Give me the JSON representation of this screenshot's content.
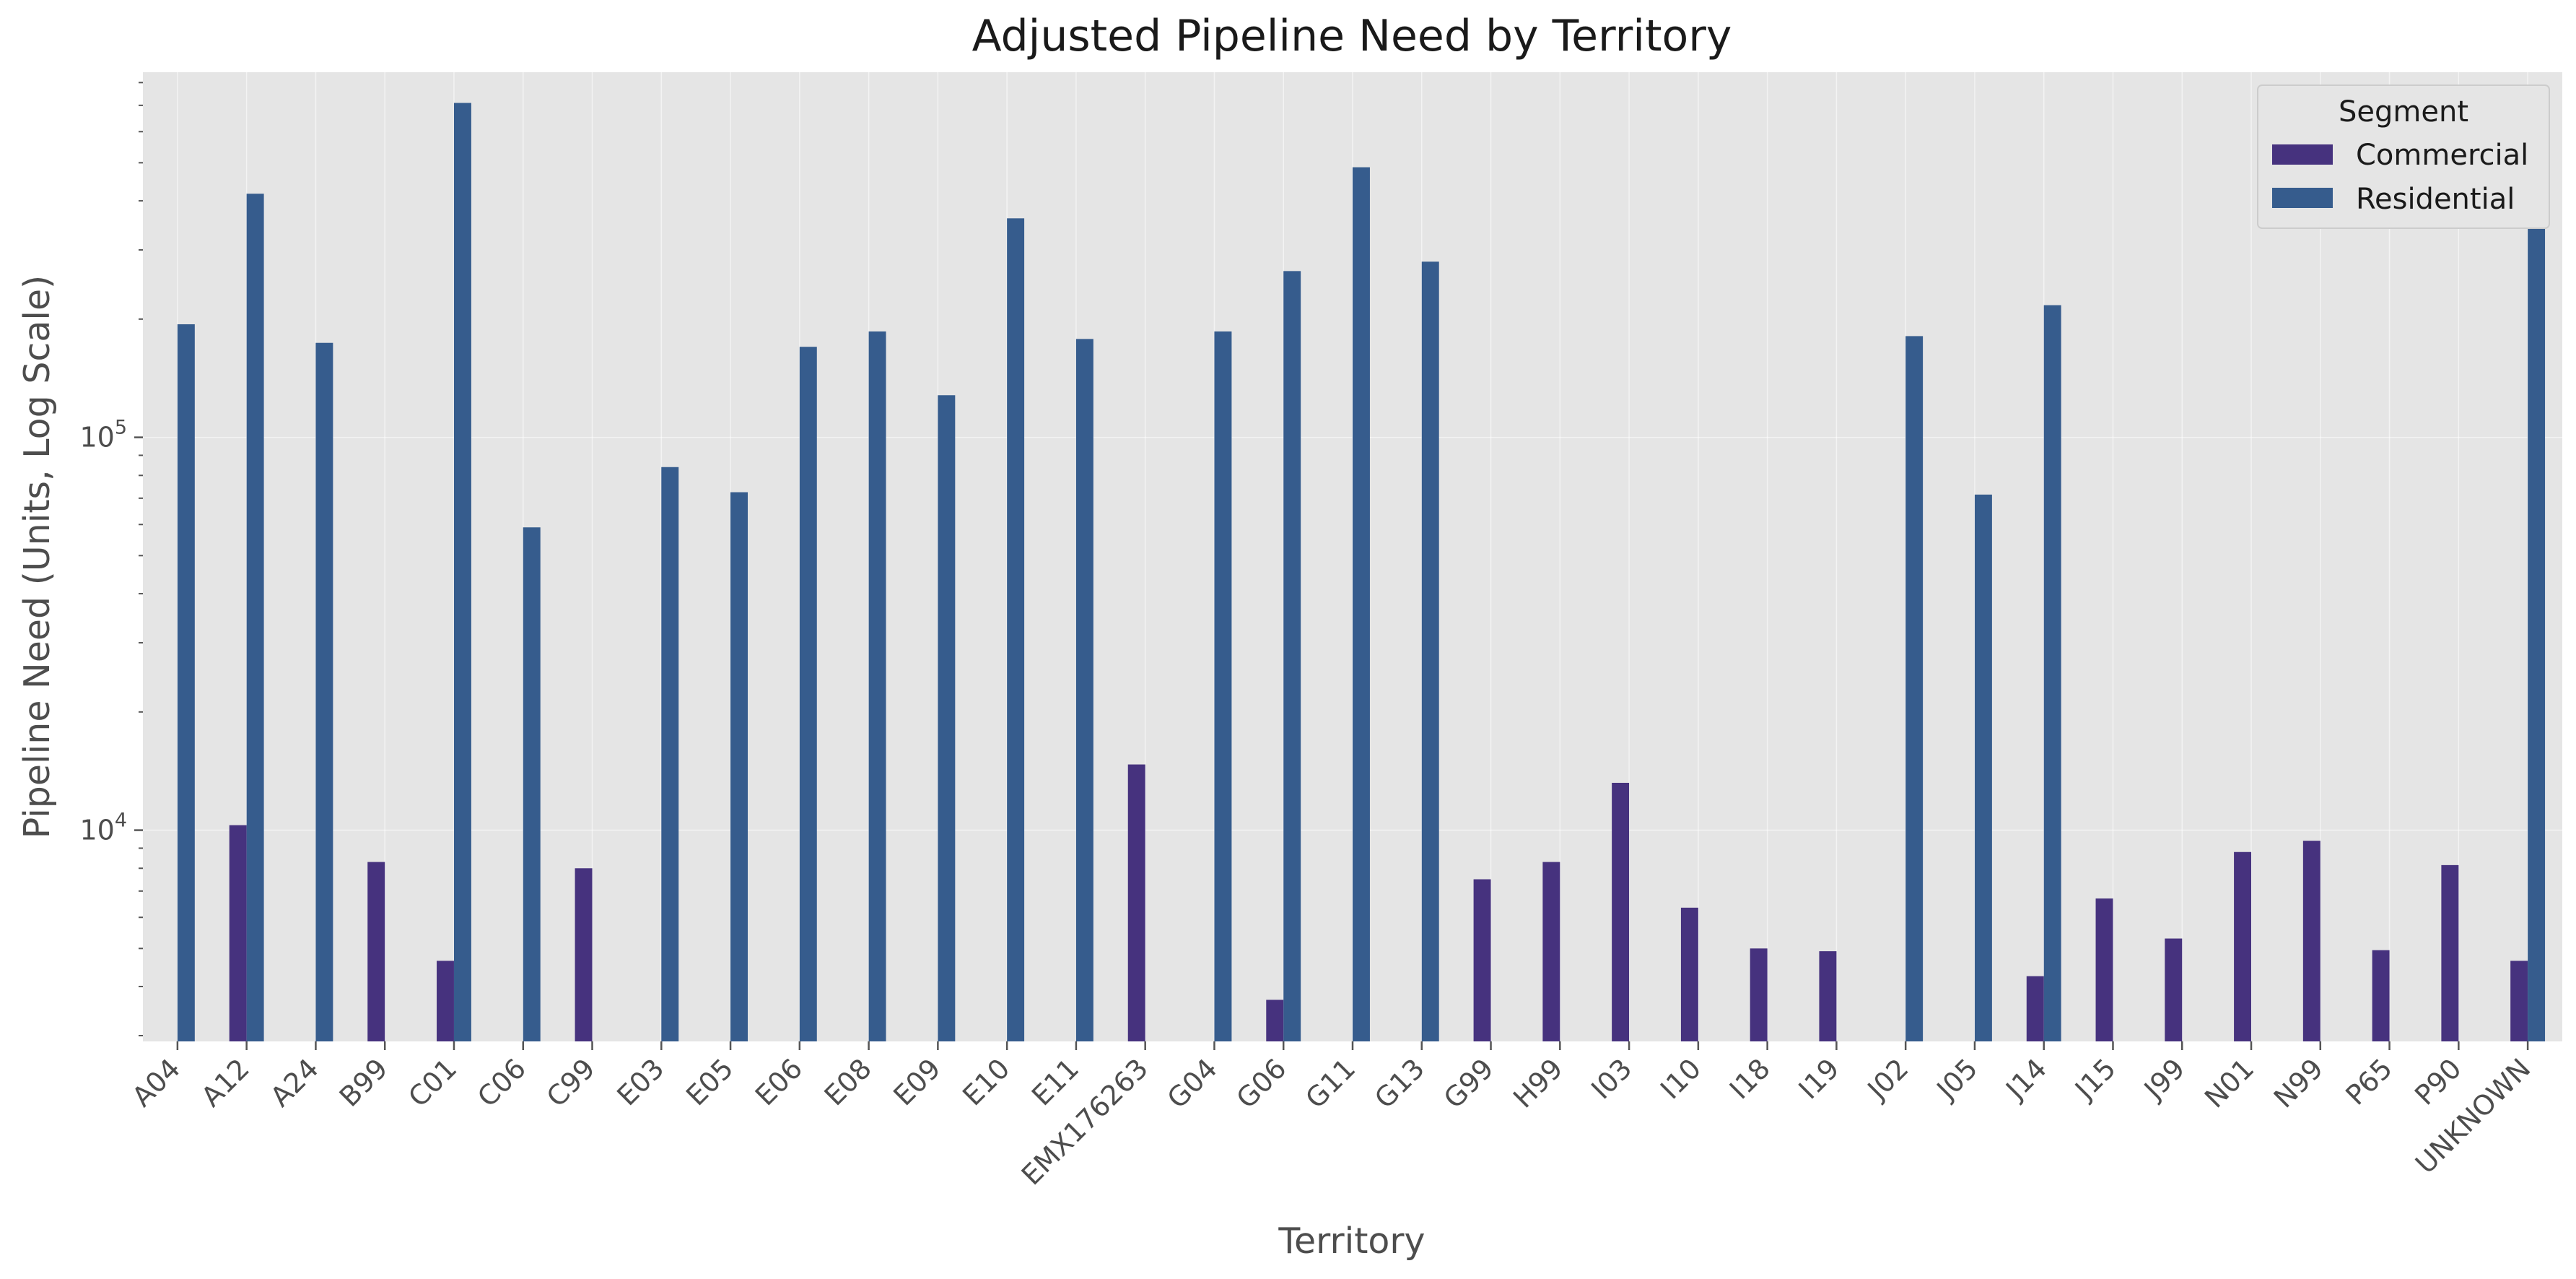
{
  "chart_data": {
    "type": "bar",
    "title": "Adjusted Pipeline Need by Territory",
    "xlabel": "Territory",
    "ylabel": "Pipeline Need (Units, Log Scale)",
    "y_scale": "log",
    "ylim": [
      2900,
      850000
    ],
    "y_major_ticks": [
      10000,
      100000
    ],
    "y_major_tick_labels": [
      {
        "base": "10",
        "exp": "4"
      },
      {
        "base": "10",
        "exp": "5"
      }
    ],
    "grid": true,
    "legend": {
      "title": "Segment",
      "position": "top-right"
    },
    "categories": [
      "A04",
      "A12",
      "A24",
      "B99",
      "C01",
      "C06",
      "C99",
      "E03",
      "E05",
      "E06",
      "E08",
      "E09",
      "E10",
      "E11",
      "EMX176263",
      "G04",
      "G06",
      "G11",
      "G13",
      "G99",
      "H99",
      "I03",
      "I10",
      "I18",
      "I19",
      "J02",
      "J05",
      "J14",
      "J15",
      "J99",
      "N01",
      "N99",
      "P65",
      "P90",
      "UNKNOWN"
    ],
    "series": [
      {
        "name": "Commercial",
        "color": "#46327e",
        "values": [
          null,
          10300,
          null,
          8300,
          4650,
          null,
          8000,
          null,
          null,
          null,
          null,
          null,
          null,
          null,
          14700,
          null,
          3700,
          null,
          null,
          7500,
          8300,
          13200,
          6350,
          5000,
          4920,
          null,
          null,
          4250,
          6700,
          5300,
          8800,
          9400,
          4950,
          8150,
          4650
        ]
      },
      {
        "name": "Residential",
        "color": "#365c8d",
        "values": [
          194000,
          417000,
          174000,
          null,
          710000,
          59000,
          null,
          84000,
          72500,
          170000,
          186000,
          128000,
          361000,
          178000,
          null,
          186000,
          265000,
          487000,
          280000,
          null,
          null,
          null,
          null,
          null,
          null,
          181000,
          71500,
          217000,
          null,
          null,
          null,
          null,
          null,
          null,
          470000
        ]
      }
    ]
  }
}
